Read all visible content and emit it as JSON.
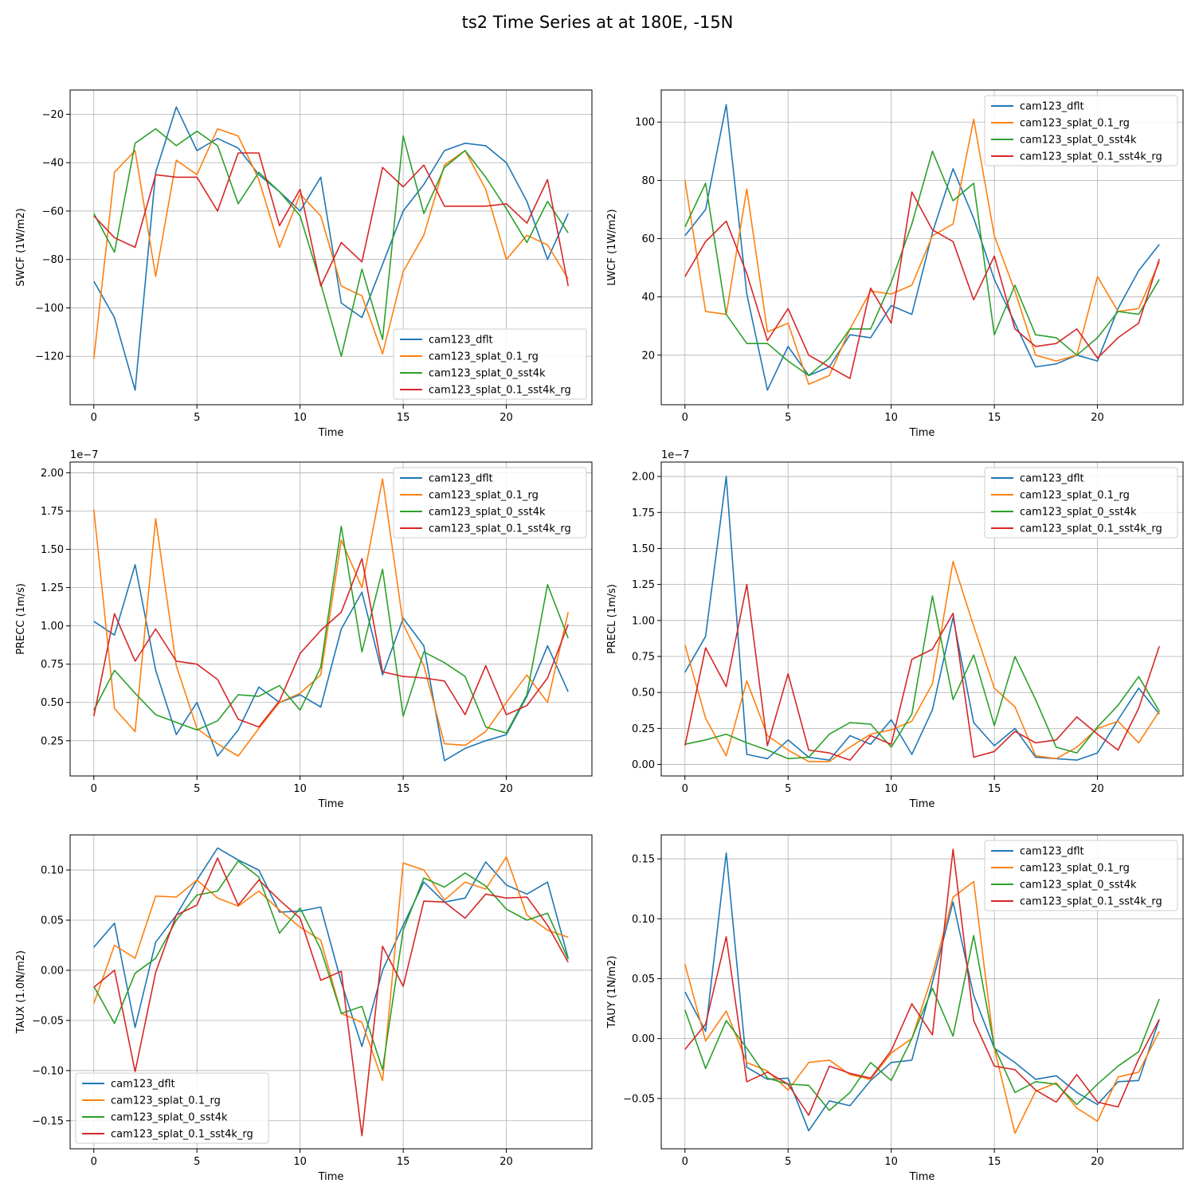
{
  "figure": {
    "title": "ts2 Time Series at at 180E, -15N"
  },
  "chart_data": [
    {
      "type": "line",
      "title": "",
      "xlabel": "Time",
      "ylabel": "SWCF (1W/m2)",
      "offset_text": "",
      "xlim": [
        -1.15,
        24.15
      ],
      "ylim": [
        -140,
        -10
      ],
      "xticks": [
        0,
        5,
        10,
        15,
        20
      ],
      "yticks": [
        -120,
        -100,
        -80,
        -60,
        -40,
        -20
      ],
      "ytick_labels": [
        "−120",
        "−100",
        "−80",
        "−60",
        "−40",
        "−20"
      ],
      "legend_loc": "lower-right",
      "grid": true,
      "x": [
        0,
        1,
        2,
        3,
        4,
        5,
        6,
        7,
        8,
        9,
        10,
        11,
        12,
        13,
        14,
        15,
        16,
        17,
        18,
        19,
        20,
        21,
        22,
        23
      ],
      "series": [
        {
          "name": "cam123_dflt",
          "color": "#1f77b4",
          "values": [
            -89,
            -104,
            -134,
            -44,
            -17,
            -35,
            -30,
            -34,
            -45,
            -52,
            -60,
            -46,
            -98,
            -104,
            -82,
            -60,
            -49,
            -35,
            -32,
            -33,
            -40,
            -56,
            -80,
            -61
          ]
        },
        {
          "name": "cam123_splat_0.1_rg",
          "color": "#ff7f0e",
          "values": [
            -121,
            -44,
            -35,
            -87,
            -39,
            -45,
            -26,
            -29,
            -47,
            -75,
            -53,
            -62,
            -91,
            -95,
            -119,
            -85,
            -70,
            -41,
            -35,
            -51,
            -80,
            -70,
            -74,
            -88
          ]
        },
        {
          "name": "cam123_splat_0_sst4k",
          "color": "#2ca02c",
          "values": [
            -61,
            -77,
            -32,
            -26,
            -33,
            -27,
            -33,
            -57,
            -44,
            -52,
            -62,
            -90,
            -120,
            -84,
            -113,
            -29,
            -61,
            -42,
            -35,
            -46,
            -59,
            -73,
            -56,
            -69
          ]
        },
        {
          "name": "cam123_splat_0.1_sst4k_rg",
          "color": "#d62728",
          "values": [
            -62,
            -71,
            -75,
            -45,
            -46,
            -46,
            -60,
            -36,
            -36,
            -66,
            -51,
            -91,
            -73,
            -81,
            -42,
            -50,
            -41,
            -58,
            -58,
            -58,
            -57,
            -65,
            -47,
            -91
          ]
        }
      ]
    },
    {
      "type": "line",
      "title": "",
      "xlabel": "Time",
      "ylabel": "LWCF (1W/m2)",
      "offset_text": "",
      "xlim": [
        -1.15,
        24.15
      ],
      "ylim": [
        3,
        111
      ],
      "xticks": [
        0,
        5,
        10,
        15,
        20
      ],
      "yticks": [
        20,
        40,
        60,
        80,
        100
      ],
      "ytick_labels": [
        "20",
        "40",
        "60",
        "80",
        "100"
      ],
      "legend_loc": "upper-right",
      "grid": true,
      "x": [
        0,
        1,
        2,
        3,
        4,
        5,
        6,
        7,
        8,
        9,
        10,
        11,
        12,
        13,
        14,
        15,
        16,
        17,
        18,
        19,
        20,
        21,
        22,
        23
      ],
      "series": [
        {
          "name": "cam123_dflt",
          "color": "#1f77b4",
          "values": [
            61,
            70,
            106,
            41,
            8,
            23,
            13,
            16,
            27,
            26,
            37,
            34,
            62,
            84,
            67,
            46,
            31,
            16,
            17,
            20,
            18,
            36,
            49,
            58
          ]
        },
        {
          "name": "cam123_splat_0.1_rg",
          "color": "#ff7f0e",
          "values": [
            80,
            35,
            34,
            77,
            28,
            31,
            10,
            13,
            29,
            42,
            41,
            44,
            61,
            65,
            101,
            61,
            42,
            20,
            18,
            20,
            47,
            35,
            36,
            52
          ]
        },
        {
          "name": "cam123_splat_0_sst4k",
          "color": "#2ca02c",
          "values": [
            64,
            79,
            34,
            24,
            24,
            18,
            13,
            19,
            29,
            29,
            45,
            65,
            90,
            73,
            79,
            27,
            44,
            27,
            26,
            20,
            26,
            35,
            34,
            46
          ]
        },
        {
          "name": "cam123_splat_0.1_sst4k_rg",
          "color": "#d62728",
          "values": [
            47,
            59,
            66,
            48,
            25,
            36,
            20,
            16,
            12,
            43,
            31,
            76,
            63,
            59,
            39,
            54,
            29,
            23,
            24,
            29,
            19,
            26,
            31,
            53
          ]
        }
      ]
    },
    {
      "type": "line",
      "title": "",
      "xlabel": "Time",
      "ylabel": "PRECC (1m/s)",
      "offset_text": "1e−7",
      "xlim": [
        -1.15,
        24.15
      ],
      "ylim": [
        0.02,
        2.07
      ],
      "xticks": [
        0,
        5,
        10,
        15,
        20
      ],
      "yticks": [
        0.25,
        0.5,
        0.75,
        1.0,
        1.25,
        1.5,
        1.75,
        2.0
      ],
      "ytick_labels": [
        "0.25",
        "0.50",
        "0.75",
        "1.00",
        "1.25",
        "1.50",
        "1.75",
        "2.00"
      ],
      "legend_loc": "upper-right",
      "grid": true,
      "x": [
        0,
        1,
        2,
        3,
        4,
        5,
        6,
        7,
        8,
        9,
        10,
        11,
        12,
        13,
        14,
        15,
        16,
        17,
        18,
        19,
        20,
        21,
        22,
        23
      ],
      "series": [
        {
          "name": "cam123_dflt",
          "color": "#1f77b4",
          "values": [
            1.03,
            0.94,
            1.4,
            0.71,
            0.29,
            0.5,
            0.15,
            0.32,
            0.6,
            0.5,
            0.55,
            0.47,
            0.98,
            1.22,
            0.68,
            1.05,
            0.87,
            0.12,
            0.2,
            0.25,
            0.29,
            0.54,
            0.87,
            0.57
          ]
        },
        {
          "name": "cam123_splat_0.1_rg",
          "color": "#ff7f0e",
          "values": [
            1.76,
            0.46,
            0.31,
            1.7,
            0.74,
            0.33,
            0.23,
            0.15,
            0.33,
            0.5,
            0.56,
            0.68,
            1.56,
            1.25,
            1.96,
            1.01,
            0.74,
            0.23,
            0.22,
            0.31,
            0.5,
            0.68,
            0.5,
            1.09
          ]
        },
        {
          "name": "cam123_splat_0_sst4k",
          "color": "#2ca02c",
          "values": [
            0.45,
            0.71,
            0.56,
            0.42,
            0.37,
            0.32,
            0.38,
            0.55,
            0.54,
            0.61,
            0.45,
            0.73,
            1.65,
            0.83,
            1.37,
            0.41,
            0.83,
            0.76,
            0.67,
            0.34,
            0.3,
            0.55,
            1.27,
            0.92
          ]
        },
        {
          "name": "cam123_splat_0.1_sst4k_rg",
          "color": "#d62728",
          "values": [
            0.41,
            1.08,
            0.77,
            0.98,
            0.77,
            0.75,
            0.65,
            0.39,
            0.34,
            0.51,
            0.82,
            0.97,
            1.09,
            1.44,
            0.7,
            0.67,
            0.66,
            0.64,
            0.42,
            0.74,
            0.42,
            0.48,
            0.66,
            1.01
          ]
        }
      ]
    },
    {
      "type": "line",
      "title": "",
      "xlabel": "Time",
      "ylabel": "PRECL (1m/s)",
      "offset_text": "1e−7",
      "xlim": [
        -1.15,
        24.15
      ],
      "ylim": [
        -0.08,
        2.1
      ],
      "xticks": [
        0,
        5,
        10,
        15,
        20
      ],
      "yticks": [
        0.0,
        0.25,
        0.5,
        0.75,
        1.0,
        1.25,
        1.5,
        1.75,
        2.0
      ],
      "ytick_labels": [
        "0.00",
        "0.25",
        "0.50",
        "0.75",
        "1.00",
        "1.25",
        "1.50",
        "1.75",
        "2.00"
      ],
      "legend_loc": "upper-right",
      "grid": true,
      "x": [
        0,
        1,
        2,
        3,
        4,
        5,
        6,
        7,
        8,
        9,
        10,
        11,
        12,
        13,
        14,
        15,
        16,
        17,
        18,
        19,
        20,
        21,
        22,
        23
      ],
      "series": [
        {
          "name": "cam123_dflt",
          "color": "#1f77b4",
          "values": [
            0.64,
            0.89,
            2.0,
            0.07,
            0.04,
            0.17,
            0.05,
            0.03,
            0.2,
            0.14,
            0.31,
            0.07,
            0.38,
            1.02,
            0.29,
            0.13,
            0.25,
            0.05,
            0.04,
            0.03,
            0.08,
            0.31,
            0.53,
            0.35
          ]
        },
        {
          "name": "cam123_splat_0.1_rg",
          "color": "#ff7f0e",
          "values": [
            0.83,
            0.32,
            0.06,
            0.58,
            0.2,
            0.1,
            0.02,
            0.02,
            0.12,
            0.21,
            0.24,
            0.3,
            0.56,
            1.41,
            0.96,
            0.53,
            0.4,
            0.06,
            0.04,
            0.12,
            0.25,
            0.3,
            0.15,
            0.37
          ]
        },
        {
          "name": "cam123_splat_0_sst4k",
          "color": "#2ca02c",
          "values": [
            0.14,
            0.17,
            0.21,
            0.15,
            0.1,
            0.04,
            0.05,
            0.21,
            0.29,
            0.28,
            0.12,
            0.35,
            1.17,
            0.45,
            0.76,
            0.27,
            0.75,
            0.45,
            0.12,
            0.08,
            0.26,
            0.41,
            0.61,
            0.37
          ]
        },
        {
          "name": "cam123_splat_0.1_sst4k_rg",
          "color": "#d62728",
          "values": [
            0.13,
            0.81,
            0.54,
            1.25,
            0.13,
            0.63,
            0.1,
            0.08,
            0.03,
            0.2,
            0.14,
            0.73,
            0.8,
            1.05,
            0.05,
            0.09,
            0.23,
            0.15,
            0.17,
            0.33,
            0.21,
            0.1,
            0.39,
            0.82
          ]
        }
      ]
    },
    {
      "type": "line",
      "title": "",
      "xlabel": "Time",
      "ylabel": "TAUX (1.0N/m2)",
      "offset_text": "",
      "xlim": [
        -1.15,
        24.15
      ],
      "ylim": [
        -0.178,
        0.135
      ],
      "xticks": [
        0,
        5,
        10,
        15,
        20
      ],
      "yticks": [
        -0.15,
        -0.1,
        -0.05,
        0.0,
        0.05,
        0.1
      ],
      "ytick_labels": [
        "−0.15",
        "−0.10",
        "−0.05",
        "0.00",
        "0.05",
        "0.10"
      ],
      "legend_loc": "lower-left",
      "grid": true,
      "x": [
        0,
        1,
        2,
        3,
        4,
        5,
        6,
        7,
        8,
        9,
        10,
        11,
        12,
        13,
        14,
        15,
        16,
        17,
        18,
        19,
        20,
        21,
        22,
        23
      ],
      "series": [
        {
          "name": "cam123_dflt",
          "color": "#1f77b4",
          "values": [
            0.023,
            0.047,
            -0.057,
            0.028,
            0.055,
            0.09,
            0.122,
            0.11,
            0.1,
            0.058,
            0.059,
            0.063,
            -0.012,
            -0.076,
            0.0,
            0.045,
            0.088,
            0.068,
            0.072,
            0.108,
            0.085,
            0.076,
            0.088,
            0.012
          ]
        },
        {
          "name": "cam123_splat_0.1_rg",
          "color": "#ff7f0e",
          "values": [
            -0.033,
            0.025,
            0.012,
            0.074,
            0.073,
            0.09,
            0.072,
            0.064,
            0.079,
            0.06,
            0.043,
            0.03,
            -0.043,
            -0.052,
            -0.11,
            0.107,
            0.1,
            0.07,
            0.088,
            0.081,
            0.113,
            0.055,
            0.04,
            0.033
          ]
        },
        {
          "name": "cam123_splat_0_sst4k",
          "color": "#2ca02c",
          "values": [
            -0.016,
            -0.053,
            -0.003,
            0.012,
            0.05,
            0.075,
            0.079,
            0.109,
            0.093,
            0.037,
            0.062,
            0.021,
            -0.043,
            -0.036,
            -0.099,
            0.04,
            0.092,
            0.083,
            0.097,
            0.084,
            0.061,
            0.05,
            0.057,
            0.011
          ]
        },
        {
          "name": "cam123_splat_0.1_sst4k_rg",
          "color": "#d62728",
          "values": [
            -0.017,
            0.0,
            -0.101,
            -0.002,
            0.055,
            0.065,
            0.112,
            0.065,
            0.09,
            0.07,
            0.052,
            -0.01,
            -0.001,
            -0.165,
            0.024,
            -0.016,
            0.069,
            0.068,
            0.052,
            0.076,
            0.072,
            0.073,
            0.045,
            0.008
          ]
        }
      ]
    },
    {
      "type": "line",
      "title": "",
      "xlabel": "Time",
      "ylabel": "TAUY (1N/m2)",
      "offset_text": "",
      "xlim": [
        -1.15,
        24.15
      ],
      "ylim": [
        -0.092,
        0.17
      ],
      "xticks": [
        0,
        5,
        10,
        15,
        20
      ],
      "yticks": [
        -0.05,
        0.0,
        0.05,
        0.1,
        0.15
      ],
      "ytick_labels": [
        "−0.05",
        "0.00",
        "0.05",
        "0.10",
        "0.15"
      ],
      "legend_loc": "upper-right",
      "grid": true,
      "x": [
        0,
        1,
        2,
        3,
        4,
        5,
        6,
        7,
        8,
        9,
        10,
        11,
        12,
        13,
        14,
        15,
        16,
        17,
        18,
        19,
        20,
        21,
        22,
        23
      ],
      "series": [
        {
          "name": "cam123_dflt",
          "color": "#1f77b4",
          "values": [
            0.039,
            0.006,
            0.155,
            -0.024,
            -0.034,
            -0.033,
            -0.077,
            -0.052,
            -0.056,
            -0.035,
            -0.02,
            -0.018,
            0.047,
            0.114,
            0.036,
            -0.008,
            -0.02,
            -0.034,
            -0.031,
            -0.045,
            -0.055,
            -0.036,
            -0.035,
            0.016
          ]
        },
        {
          "name": "cam123_splat_0.1_rg",
          "color": "#ff7f0e",
          "values": [
            0.062,
            -0.002,
            0.023,
            -0.02,
            -0.027,
            -0.043,
            -0.02,
            -0.018,
            -0.03,
            -0.034,
            -0.012,
            0.0,
            0.053,
            0.118,
            0.131,
            -0.008,
            -0.079,
            -0.044,
            -0.037,
            -0.058,
            -0.069,
            -0.032,
            -0.028,
            0.006
          ]
        },
        {
          "name": "cam123_splat_0_sst4k",
          "color": "#2ca02c",
          "values": [
            0.024,
            -0.025,
            0.015,
            -0.008,
            -0.033,
            -0.038,
            -0.039,
            -0.06,
            -0.045,
            -0.02,
            -0.035,
            0.0,
            0.042,
            0.002,
            0.086,
            -0.007,
            -0.045,
            -0.036,
            -0.038,
            -0.055,
            -0.038,
            -0.023,
            -0.011,
            0.033
          ]
        },
        {
          "name": "cam123_splat_0.1_sst4k_rg",
          "color": "#d62728",
          "values": [
            -0.009,
            0.012,
            0.085,
            -0.036,
            -0.028,
            -0.038,
            -0.064,
            -0.023,
            -0.029,
            -0.033,
            -0.01,
            0.029,
            0.003,
            0.158,
            0.015,
            -0.023,
            -0.026,
            -0.043,
            -0.053,
            -0.03,
            -0.053,
            -0.057,
            -0.017,
            0.016
          ]
        }
      ]
    }
  ]
}
